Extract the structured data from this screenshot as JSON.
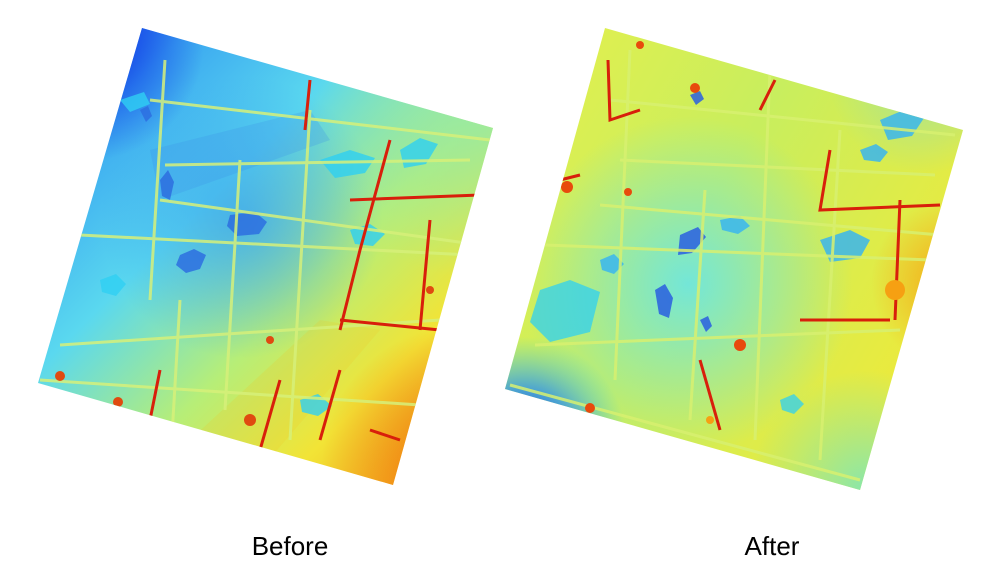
{
  "captions": {
    "before": "Before",
    "after": "After"
  },
  "colormap": {
    "dark_blue": "#0a2ae6",
    "blue": "#2f7be8",
    "cyan": "#2fd0f2",
    "aqua": "#6ee6e0",
    "green_yellow": "#b8ee6a",
    "yellow": "#f2f23a",
    "orange": "#f9a514",
    "red": "#d81f0b"
  }
}
